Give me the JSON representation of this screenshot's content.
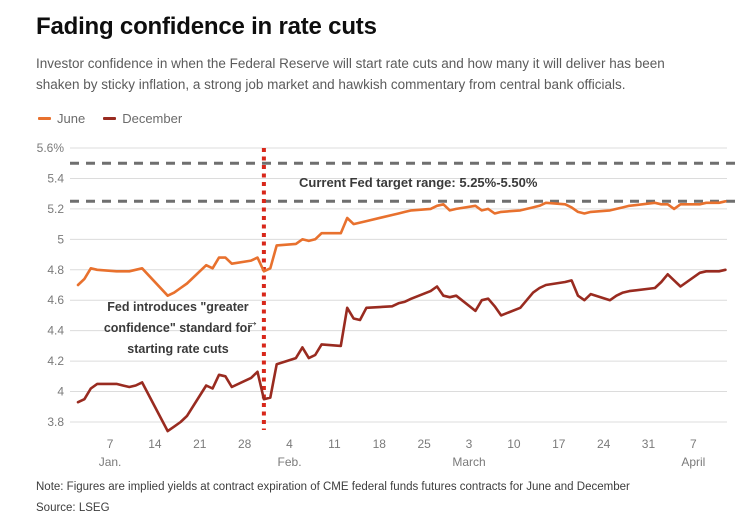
{
  "header": {
    "title": "Fading confidence in rate cuts",
    "subtitle": "Investor confidence in when the Federal Reserve will start rate cuts and how many it will deliver has been shaken by sticky inflation, a strong job market and hawkish commentary from central bank officials."
  },
  "legend": [
    {
      "label": "June",
      "color": "#E8712E"
    },
    {
      "label": "December",
      "color": "#992B20"
    }
  ],
  "annotations": {
    "target_range": "Current Fed target range: 5.25%-5.50%",
    "fed_line1": "Fed introduces \"greater",
    "fed_line2": "confidence\" standard for",
    "fed_line3": "starting rate cuts",
    "arrow": "→"
  },
  "footer": {
    "note": "Note: Figures are implied yields at contract expiration of CME federal funds futures contracts for June and December",
    "source": "Source: LSEG"
  },
  "chart_data": {
    "type": "line",
    "title": "Fading confidence in rate cuts",
    "unit": "%",
    "ylim": [
      3.8,
      5.6
    ],
    "ytick_step": 0.2,
    "y_tick_labels": [
      "5.6%",
      "5.4",
      "5.2",
      "5",
      "4.8",
      "4.6",
      "4.4",
      "4.2",
      "4",
      "3.8"
    ],
    "grid": true,
    "grid_color": "#DCDCDC",
    "axis_text_color": "#7A7A7A",
    "legend_position": "top-left",
    "x_dates": [
      "Jan 2",
      "Jan 3",
      "Jan 4",
      "Jan 5",
      "Jan 8",
      "Jan 9",
      "Jan 10",
      "Jan 11",
      "Jan 12",
      "Jan 16",
      "Jan 17",
      "Jan 18",
      "Jan 19",
      "Jan 22",
      "Jan 23",
      "Jan 24",
      "Jan 25",
      "Jan 26",
      "Jan 29",
      "Jan 30",
      "Jan 31",
      "Feb 1",
      "Feb 2",
      "Feb 5",
      "Feb 6",
      "Feb 7",
      "Feb 8",
      "Feb 9",
      "Feb 12",
      "Feb 13",
      "Feb 14",
      "Feb 15",
      "Feb 16",
      "Feb 20",
      "Feb 21",
      "Feb 22",
      "Feb 23",
      "Feb 26",
      "Feb 27",
      "Feb 28",
      "Feb 29",
      "Mar 1",
      "Mar 4",
      "Mar 5",
      "Mar 6",
      "Mar 7",
      "Mar 8",
      "Mar 11",
      "Mar 12",
      "Mar 13",
      "Mar 14",
      "Mar 15",
      "Mar 18",
      "Mar 19",
      "Mar 20",
      "Mar 21",
      "Mar 22",
      "Mar 25",
      "Mar 26",
      "Mar 27",
      "Mar 28",
      "Apr 1",
      "Apr 2",
      "Apr 3",
      "Apr 4",
      "Apr 5",
      "Apr 8",
      "Apr 9",
      "Apr 10",
      "Apr 11",
      "Apr 12"
    ],
    "series": [
      {
        "name": "June",
        "color": "#E8712E",
        "values": [
          4.7,
          4.74,
          4.81,
          4.8,
          4.79,
          4.79,
          4.79,
          4.8,
          4.81,
          4.63,
          4.65,
          4.68,
          4.71,
          4.83,
          4.81,
          4.88,
          4.88,
          4.84,
          4.86,
          4.88,
          4.79,
          4.81,
          4.96,
          4.97,
          5.0,
          4.99,
          5.0,
          5.04,
          5.04,
          5.14,
          5.1,
          5.11,
          5.12,
          5.16,
          5.17,
          5.18,
          5.19,
          5.2,
          5.22,
          5.23,
          5.19,
          5.2,
          5.22,
          5.19,
          5.2,
          5.17,
          5.18,
          5.19,
          5.2,
          5.21,
          5.22,
          5.24,
          5.23,
          5.21,
          5.18,
          5.17,
          5.18,
          5.19,
          5.2,
          5.21,
          5.22,
          5.24,
          5.23,
          5.23,
          5.2,
          5.23,
          5.23,
          5.24,
          5.24,
          5.24,
          5.25
        ]
      },
      {
        "name": "December",
        "color": "#992B20",
        "values": [
          3.93,
          3.95,
          4.02,
          4.05,
          4.05,
          4.04,
          4.03,
          4.04,
          4.06,
          3.74,
          3.77,
          3.8,
          3.84,
          4.04,
          4.02,
          4.11,
          4.1,
          4.03,
          4.09,
          4.13,
          3.95,
          3.96,
          4.18,
          4.22,
          4.29,
          4.22,
          4.24,
          4.31,
          4.3,
          4.55,
          4.48,
          4.47,
          4.55,
          4.56,
          4.58,
          4.59,
          4.61,
          4.66,
          4.69,
          4.63,
          4.62,
          4.63,
          4.53,
          4.6,
          4.61,
          4.56,
          4.5,
          4.55,
          4.6,
          4.65,
          4.68,
          4.7,
          4.72,
          4.73,
          4.63,
          4.6,
          4.64,
          4.6,
          4.63,
          4.65,
          4.66,
          4.68,
          4.72,
          4.77,
          4.73,
          4.69,
          4.78,
          4.79,
          4.79,
          4.79,
          4.8
        ]
      }
    ],
    "reference_lines": [
      {
        "label": "Fed target range upper bound",
        "value": 5.5,
        "color": "#6F6F6F",
        "style": "dashed"
      },
      {
        "label": "Fed target range lower bound",
        "value": 5.25,
        "color": "#6F6F6F",
        "style": "dashed"
      }
    ],
    "event_line": {
      "date": "Jan 31",
      "color": "#D8271A",
      "style": "dotted",
      "label": "Fed introduces \"greater confidence\" standard for starting rate cuts"
    },
    "x_ticks": [
      {
        "date": "Jan 7",
        "label": "7",
        "month": "Jan."
      },
      {
        "date": "Jan 14",
        "label": "14"
      },
      {
        "date": "Jan 21",
        "label": "21"
      },
      {
        "date": "Jan 28",
        "label": "28"
      },
      {
        "date": "Feb 4",
        "label": "4",
        "month": "Feb."
      },
      {
        "date": "Feb 11",
        "label": "11"
      },
      {
        "date": "Feb 18",
        "label": "18"
      },
      {
        "date": "Feb 25",
        "label": "25"
      },
      {
        "date": "Mar 3",
        "label": "3",
        "month": "March"
      },
      {
        "date": "Mar 10",
        "label": "10"
      },
      {
        "date": "Mar 17",
        "label": "17"
      },
      {
        "date": "Mar 24",
        "label": "24"
      },
      {
        "date": "Mar 31",
        "label": "31"
      },
      {
        "date": "Apr 7",
        "label": "7",
        "month": "April"
      }
    ]
  }
}
